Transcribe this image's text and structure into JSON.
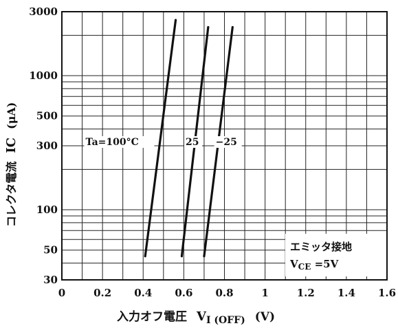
{
  "chart_data": {
    "type": "line",
    "xlabel_jp": "入力オフ電圧",
    "xlabel_sym": "V",
    "xlabel_sub": "I (OFF)",
    "xlabel_unit": "(V)",
    "ylabel_jp": "コレクタ電流",
    "ylabel_sym": "IC",
    "ylabel_unit": "(μA)",
    "xlim": [
      0,
      1.6
    ],
    "ylim": [
      30,
      3000
    ],
    "yscale": "log",
    "grid": true,
    "x_ticks": [
      "0",
      "0.2",
      "0.4",
      "0.6",
      "0.8",
      "1",
      "1.2",
      "1.4",
      "1.6"
    ],
    "y_ticks": [
      "30",
      "50",
      "100",
      "300",
      "500",
      "1000",
      "3000"
    ],
    "series": [
      {
        "name": "Ta=100°C",
        "x": [
          0.41,
          0.56
        ],
        "y": [
          45,
          2600
        ]
      },
      {
        "name": "25",
        "x": [
          0.59,
          0.72
        ],
        "y": [
          45,
          2300
        ]
      },
      {
        "name": "−25",
        "x": [
          0.7,
          0.84
        ],
        "y": [
          45,
          2300
        ]
      }
    ],
    "annotation": {
      "line1": "エミッタ接地",
      "line2_sym": "V",
      "line2_sub": "CE",
      "line2_val": " =5V"
    }
  }
}
